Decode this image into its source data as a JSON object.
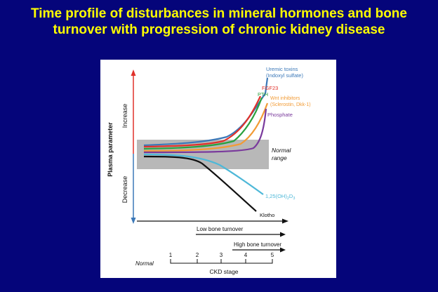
{
  "slide": {
    "title_line1": "Time profile of disturbances in mineral hormones and bone",
    "title_line2": "turnover with progression of chronic kidney disease",
    "background": "#05057a",
    "title_color": "#ffff00"
  },
  "chart_data": {
    "type": "line",
    "ylabel": "Plasma parameter",
    "y_increase_label": "Increase",
    "y_decrease_label": "Decrease",
    "normal_range_label_1": "Normal",
    "normal_range_label_2": "range",
    "xlabel": "CKD stage",
    "x_normal_label": "Normal",
    "x_stages": [
      "1",
      "2",
      "3",
      "4",
      "5"
    ],
    "bone_turnover": {
      "low": "Low bone turnover",
      "high": "High  bone turnover"
    },
    "series": [
      {
        "name": "Uremic toxins",
        "sub": "(Indoxyl sulfate)",
        "color": "#3b78b8"
      },
      {
        "name": "FGF23",
        "color": "#e0312a"
      },
      {
        "name": "PTH",
        "color": "#2aa13f"
      },
      {
        "name": "Wnt inhibitors",
        "sub": "(Sclerostin, Dkk-1)",
        "color": "#f29b35"
      },
      {
        "name": "Phosphate",
        "color": "#7a3a9c"
      },
      {
        "name": "1,25(OH)",
        "sub2": "2",
        "sub3": "D",
        "sub4": "3",
        "color": "#4eb8d8"
      },
      {
        "name": "Klotho",
        "color": "#222222"
      }
    ]
  }
}
